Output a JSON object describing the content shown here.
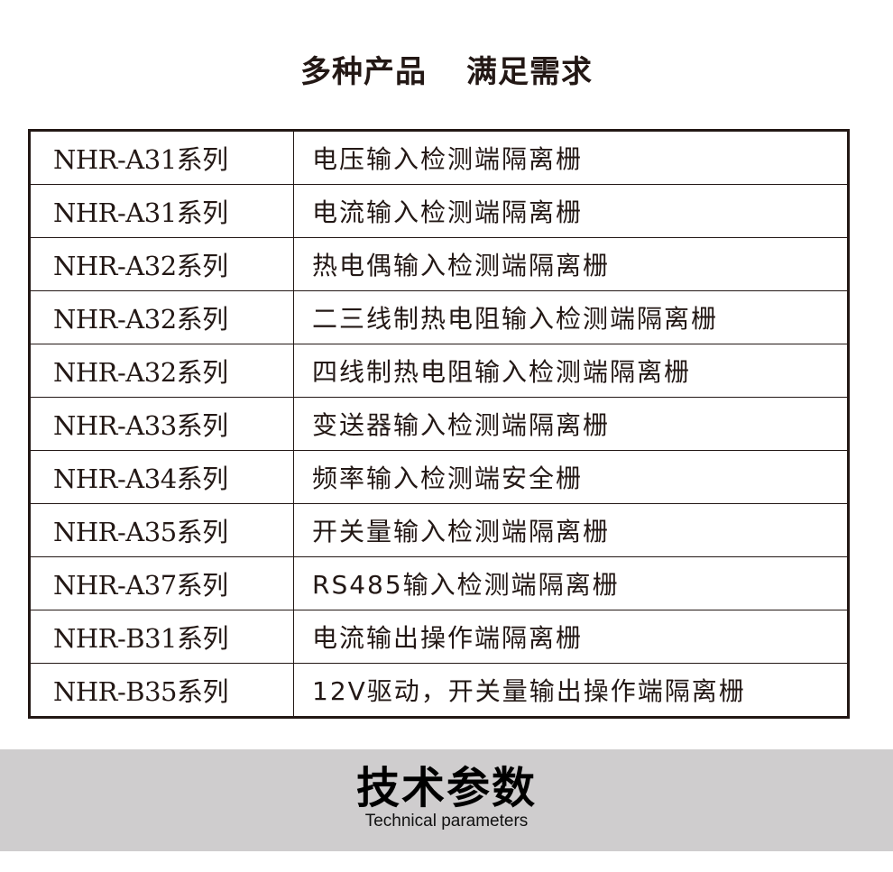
{
  "header": {
    "title_left": "多种产品",
    "title_right": "满足需求"
  },
  "table": {
    "rows": [
      {
        "series": "NHR-A31系列",
        "description": "电压输入检测端隔离栅"
      },
      {
        "series": "NHR-A31系列",
        "description": "电流输入检测端隔离栅"
      },
      {
        "series": "NHR-A32系列",
        "description": "热电偶输入检测端隔离栅"
      },
      {
        "series": "NHR-A32系列",
        "description": "二三线制热电阻输入检测端隔离栅"
      },
      {
        "series": "NHR-A32系列",
        "description": "四线制热电阻输入检测端隔离栅"
      },
      {
        "series": "NHR-A33系列",
        "description": "变送器输入检测端隔离栅"
      },
      {
        "series": "NHR-A34系列",
        "description": "频率输入检测端安全栅"
      },
      {
        "series": "NHR-A35系列",
        "description": "开关量输入检测端隔离栅"
      },
      {
        "series": "NHR-A37系列",
        "description": "RS485输入检测端隔离栅"
      },
      {
        "series": "NHR-B31系列",
        "description": "电流输出操作端隔离栅"
      },
      {
        "series": "NHR-B35系列",
        "description": "12V驱动，开关量输出操作端隔离栅"
      }
    ]
  },
  "section": {
    "title": "技术参数",
    "subtitle": "Technical parameters",
    "background": "#cfcdce"
  }
}
